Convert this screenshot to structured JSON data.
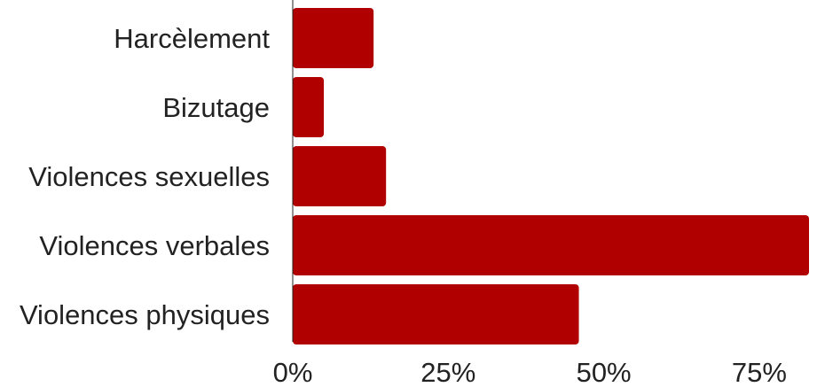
{
  "chart_data": {
    "type": "bar",
    "orientation": "horizontal",
    "categories": [
      "Harcèlement",
      "Bizutage",
      "Violences sexuelles",
      "Violences verbales",
      "Violences physiques"
    ],
    "values": [
      13,
      5,
      15,
      83,
      46
    ],
    "xlim": [
      0,
      83
    ],
    "xticks": [
      0,
      25,
      50,
      75
    ],
    "xtick_labels": [
      "0%",
      "25%",
      "50%",
      "75%"
    ],
    "bar_color": "#b00000",
    "axis_color": "#222222",
    "grid": false,
    "legend": "none"
  }
}
